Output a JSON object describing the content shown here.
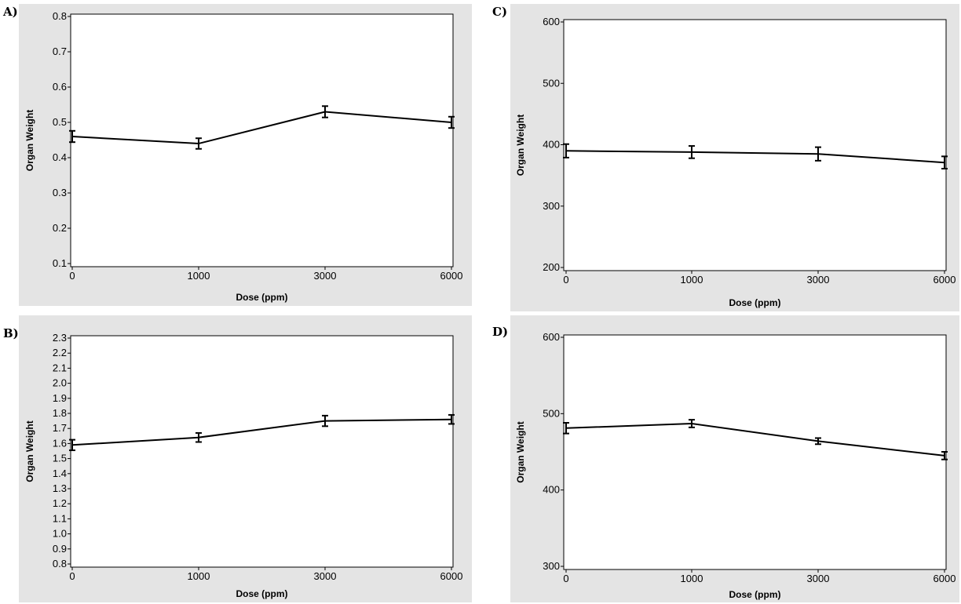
{
  "chart_data": [
    {
      "label": "A)",
      "type": "line",
      "xlabel": "Dose (ppm)",
      "ylabel": "Organ Weight",
      "x": [
        0,
        1000,
        3000,
        6000
      ],
      "x_tick_labels": [
        "0",
        "1000",
        "3000",
        "6000"
      ],
      "ylim": [
        0.1,
        0.8
      ],
      "y_ticks": [
        "0.1",
        "0.2",
        "0.3",
        "0.4",
        "0.5",
        "0.6",
        "0.7",
        "0.8"
      ],
      "series": [
        {
          "values": [
            0.46,
            0.44,
            0.53,
            0.5
          ],
          "err": [
            0.016,
            0.015,
            0.016,
            0.016
          ]
        }
      ],
      "grid": false
    },
    {
      "label": "B)",
      "type": "line",
      "xlabel": "Dose (ppm)",
      "ylabel": "Organ Weight",
      "x": [
        0,
        1000,
        3000,
        6000
      ],
      "x_tick_labels": [
        "0",
        "1000",
        "3000",
        "6000"
      ],
      "ylim": [
        0.8,
        2.3
      ],
      "y_ticks": [
        "0.8",
        "0.9",
        "1.0",
        "1.1",
        "1.2",
        "1.3",
        "1.4",
        "1.5",
        "1.6",
        "1.7",
        "1.8",
        "1.9",
        "2.0",
        "2.1",
        "2.2",
        "2.3"
      ],
      "series": [
        {
          "values": [
            1.59,
            1.64,
            1.75,
            1.76
          ],
          "err": [
            0.035,
            0.03,
            0.035,
            0.03
          ]
        }
      ],
      "grid": false
    },
    {
      "label": "C)",
      "type": "line",
      "xlabel": "Dose (ppm)",
      "ylabel": "Organ Weight",
      "x": [
        0,
        1000,
        3000,
        6000
      ],
      "x_tick_labels": [
        "0",
        "1000",
        "3000",
        "6000"
      ],
      "ylim": [
        200,
        600
      ],
      "y_ticks": [
        "200",
        "300",
        "400",
        "500",
        "600"
      ],
      "series": [
        {
          "values": [
            390,
            388,
            385,
            371
          ],
          "err": [
            11,
            10,
            11,
            10
          ]
        }
      ],
      "grid": false
    },
    {
      "label": "D)",
      "type": "line",
      "xlabel": "Dose (ppm)",
      "ylabel": "Organ Weight",
      "x": [
        0,
        1000,
        3000,
        6000
      ],
      "x_tick_labels": [
        "0",
        "1000",
        "3000",
        "6000"
      ],
      "ylim": [
        300,
        600
      ],
      "y_ticks": [
        "300",
        "400",
        "500",
        "600"
      ],
      "series": [
        {
          "values": [
            481,
            487,
            464,
            445
          ],
          "err": [
            7,
            5,
            4,
            5
          ]
        }
      ],
      "grid": false
    }
  ]
}
